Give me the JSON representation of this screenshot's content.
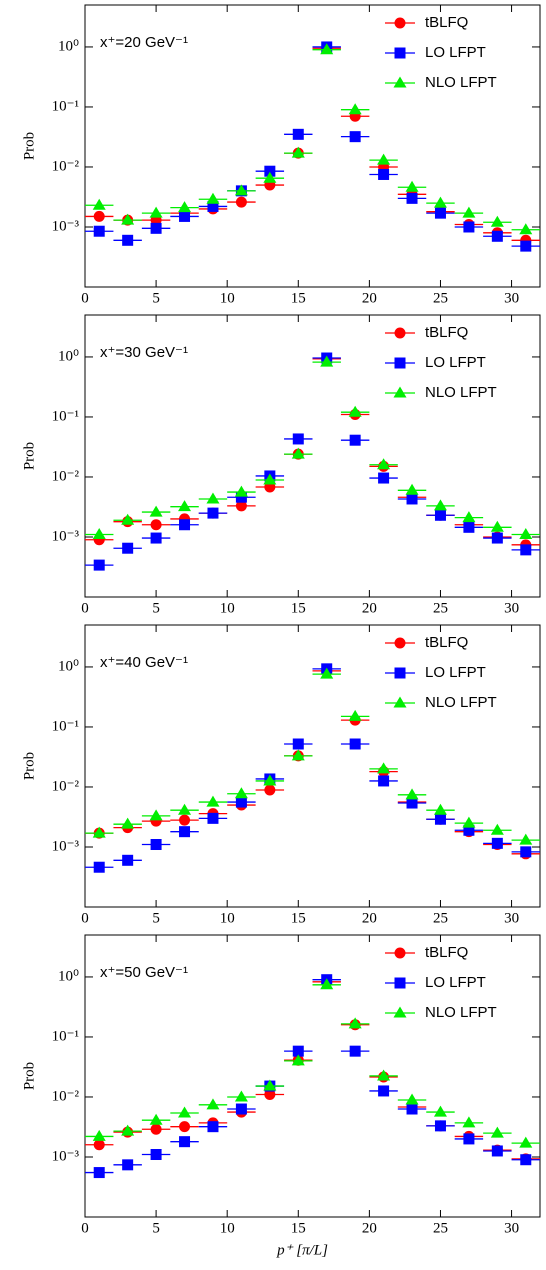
{
  "chart_data": [
    {
      "type": "scatter",
      "title": "x⁺=20 GeV⁻¹",
      "ylabel": "Prob",
      "log_y": true,
      "x": [
        1,
        3,
        5,
        7,
        9,
        11,
        13,
        15,
        17,
        19,
        21,
        23,
        25,
        27,
        29,
        31
      ],
      "xerr": 1,
      "xlim": [
        0,
        32
      ],
      "xticks": [
        0,
        5,
        10,
        15,
        20,
        25,
        30
      ],
      "ylim": [
        0.0001,
        5
      ],
      "yticks": [
        {
          "value": 0.001,
          "label": "10⁻³"
        },
        {
          "value": 0.01,
          "label": "10⁻²"
        },
        {
          "value": 0.1,
          "label": "10⁻¹"
        },
        {
          "value": 1,
          "label": "10⁰"
        }
      ],
      "legend": "upper right",
      "series": [
        {
          "name": "tBLFQ",
          "color": "#ff0000",
          "marker": "circle",
          "values": [
            0.0015,
            0.0013,
            0.0013,
            0.0017,
            0.002,
            0.0026,
            0.005,
            0.017,
            0.95,
            0.07,
            0.01,
            0.0035,
            0.0018,
            0.0011,
            0.0008,
            0.0006
          ]
        },
        {
          "name": "LO LFPT",
          "color": "#0000ff",
          "marker": "square",
          "values": [
            0.00085,
            0.0006,
            0.00095,
            0.0015,
            0.0022,
            0.004,
            0.0085,
            0.035,
            1.0,
            0.032,
            0.0075,
            0.003,
            0.0017,
            0.001,
            0.0007,
            0.00048
          ]
        },
        {
          "name": "NLO LFPT",
          "color": "#00ee00",
          "marker": "triangle",
          "values": [
            0.0023,
            0.0013,
            0.0017,
            0.0021,
            0.0029,
            0.004,
            0.0065,
            0.017,
            0.9,
            0.09,
            0.013,
            0.0046,
            0.0025,
            0.0017,
            0.0012,
            0.0009
          ]
        }
      ]
    },
    {
      "type": "scatter",
      "title": "x⁺=30 GeV⁻¹",
      "ylabel": "Prob",
      "log_y": true,
      "x": [
        1,
        3,
        5,
        7,
        9,
        11,
        13,
        15,
        17,
        19,
        21,
        23,
        25,
        27,
        29,
        31
      ],
      "xerr": 1,
      "xlim": [
        0,
        32
      ],
      "xticks": [
        0,
        5,
        10,
        15,
        20,
        25,
        30
      ],
      "ylim": [
        0.0001,
        5
      ],
      "yticks": [
        {
          "value": 0.001,
          "label": "10⁻³"
        },
        {
          "value": 0.01,
          "label": "10⁻²"
        },
        {
          "value": 0.1,
          "label": "10⁻¹"
        },
        {
          "value": 1,
          "label": "10⁰"
        }
      ],
      "legend": "upper right",
      "series": [
        {
          "name": "tBLFQ",
          "color": "#ff0000",
          "marker": "circle",
          "values": [
            0.0009,
            0.0018,
            0.0016,
            0.002,
            0.0025,
            0.0033,
            0.0068,
            0.024,
            0.93,
            0.11,
            0.015,
            0.0046,
            0.0023,
            0.0016,
            0.001,
            0.00074
          ]
        },
        {
          "name": "LO LFPT",
          "color": "#0000ff",
          "marker": "square",
          "values": [
            0.00034,
            0.00065,
            0.00096,
            0.0016,
            0.0025,
            0.0046,
            0.0104,
            0.043,
            0.96,
            0.041,
            0.0096,
            0.0043,
            0.0023,
            0.00145,
            0.00096,
            0.00061
          ]
        },
        {
          "name": "NLO LFPT",
          "color": "#00ee00",
          "marker": "triangle",
          "values": [
            0.0011,
            0.0019,
            0.0026,
            0.0032,
            0.0043,
            0.0056,
            0.0089,
            0.024,
            0.82,
            0.12,
            0.016,
            0.006,
            0.0033,
            0.0021,
            0.00145,
            0.0011
          ]
        }
      ]
    },
    {
      "type": "scatter",
      "title": "x⁺=40 GeV⁻¹",
      "ylabel": "Prob",
      "log_y": true,
      "x": [
        1,
        3,
        5,
        7,
        9,
        11,
        13,
        15,
        17,
        19,
        21,
        23,
        25,
        27,
        29,
        31
      ],
      "xerr": 1,
      "xlim": [
        0,
        32
      ],
      "xticks": [
        0,
        5,
        10,
        15,
        20,
        25,
        30
      ],
      "ylim": [
        0.0001,
        5
      ],
      "yticks": [
        {
          "value": 0.001,
          "label": "10⁻³"
        },
        {
          "value": 0.01,
          "label": "10⁻²"
        },
        {
          "value": 0.1,
          "label": "10⁻¹"
        },
        {
          "value": 1,
          "label": "10⁰"
        }
      ],
      "legend": "upper right",
      "series": [
        {
          "name": "tBLFQ",
          "color": "#ff0000",
          "marker": "circle",
          "values": [
            0.0017,
            0.0021,
            0.0027,
            0.0028,
            0.0036,
            0.005,
            0.0089,
            0.033,
            0.86,
            0.13,
            0.018,
            0.0056,
            0.0029,
            0.0018,
            0.0011,
            0.00077
          ]
        },
        {
          "name": "LO LFPT",
          "color": "#0000ff",
          "marker": "square",
          "values": [
            0.00046,
            0.0006,
            0.0011,
            0.0018,
            0.003,
            0.0056,
            0.0136,
            0.052,
            0.93,
            0.052,
            0.0126,
            0.0054,
            0.0029,
            0.0019,
            0.00115,
            0.00083
          ]
        },
        {
          "name": "NLO LFPT",
          "color": "#00ee00",
          "marker": "triangle",
          "values": [
            0.0017,
            0.0024,
            0.0033,
            0.0041,
            0.0056,
            0.0077,
            0.0126,
            0.033,
            0.76,
            0.15,
            0.02,
            0.0074,
            0.0041,
            0.0025,
            0.0019,
            0.0013
          ]
        }
      ]
    },
    {
      "type": "scatter",
      "title": "x⁺=50 GeV⁻¹",
      "ylabel": "Prob",
      "xlabel": "p⁺    [π/L]",
      "log_y": true,
      "x": [
        1,
        3,
        5,
        7,
        9,
        11,
        13,
        15,
        17,
        19,
        21,
        23,
        25,
        27,
        29,
        31
      ],
      "xerr": 1,
      "xlim": [
        0,
        32
      ],
      "xticks": [
        0,
        5,
        10,
        15,
        20,
        25,
        30
      ],
      "ylim": [
        0.0001,
        5
      ],
      "yticks": [
        {
          "value": 0.001,
          "label": "10⁻³"
        },
        {
          "value": 0.01,
          "label": "10⁻²"
        },
        {
          "value": 0.1,
          "label": "10⁻¹"
        },
        {
          "value": 1,
          "label": "10⁰"
        }
      ],
      "legend": "upper right",
      "series": [
        {
          "name": "tBLFQ",
          "color": "#ff0000",
          "marker": "circle",
          "values": [
            0.0016,
            0.0026,
            0.0029,
            0.0032,
            0.0037,
            0.0056,
            0.011,
            0.041,
            0.83,
            0.16,
            0.0215,
            0.0068,
            0.0033,
            0.0022,
            0.0013,
            0.00093
          ]
        },
        {
          "name": "LO LFPT",
          "color": "#0000ff",
          "marker": "square",
          "values": [
            0.00055,
            0.00074,
            0.0011,
            0.0018,
            0.0032,
            0.0063,
            0.0152,
            0.058,
            0.9,
            0.058,
            0.0126,
            0.0063,
            0.0033,
            0.002,
            0.00126,
            0.0009
          ]
        },
        {
          "name": "NLO LFPT",
          "color": "#00ee00",
          "marker": "triangle",
          "values": [
            0.0022,
            0.0027,
            0.0041,
            0.0054,
            0.0074,
            0.01,
            0.0152,
            0.04,
            0.74,
            0.165,
            0.0224,
            0.0089,
            0.0056,
            0.0037,
            0.0025,
            0.0017
          ]
        }
      ]
    }
  ]
}
